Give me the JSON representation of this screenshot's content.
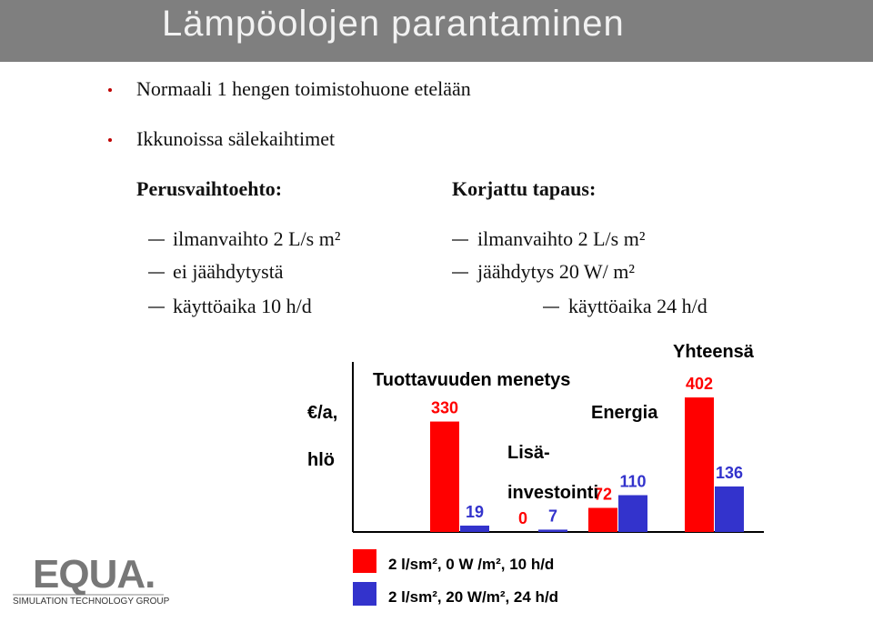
{
  "slide": {
    "title": "Lämpöolojen parantaminen",
    "bullets": [
      "Normaali 1 hengen toimistohuone etelään",
      "Ikkunoissa sälekaihtimet"
    ],
    "left_heading": "Perusvaihtoehto:",
    "left_items": [
      "ilmanvaihto 2 L/s m²",
      "ei jäähdytystä",
      "käyttöaika 10 h/d"
    ],
    "right_heading": "Korjattu tapaus:",
    "right_items": [
      "ilmanvaihto 2 L/s m²",
      "jäähdytys 20 W/ m²",
      "käyttöaika 24 h/d"
    ],
    "logo": "EQUA.",
    "logo_tagline": "SIMULATION TECHNOLOGY GROUP"
  },
  "chart_data": {
    "type": "bar",
    "y_label": "€/a,\nhlö",
    "categories": [
      "Tuottavuuden menetys",
      "Lisä-\ninvestointi",
      "Energia",
      "Yhteensä"
    ],
    "series": [
      {
        "name": "2 l/sm², 0 W /m², 10 h/d",
        "color": "#ff0000",
        "values": [
          330,
          0,
          72,
          402
        ]
      },
      {
        "name": "2 l/sm², 20 W/m², 24 h/d",
        "color": "#3333cc",
        "values": [
          19,
          7,
          110,
          136
        ]
      }
    ],
    "ylim": [
      0,
      500
    ]
  }
}
